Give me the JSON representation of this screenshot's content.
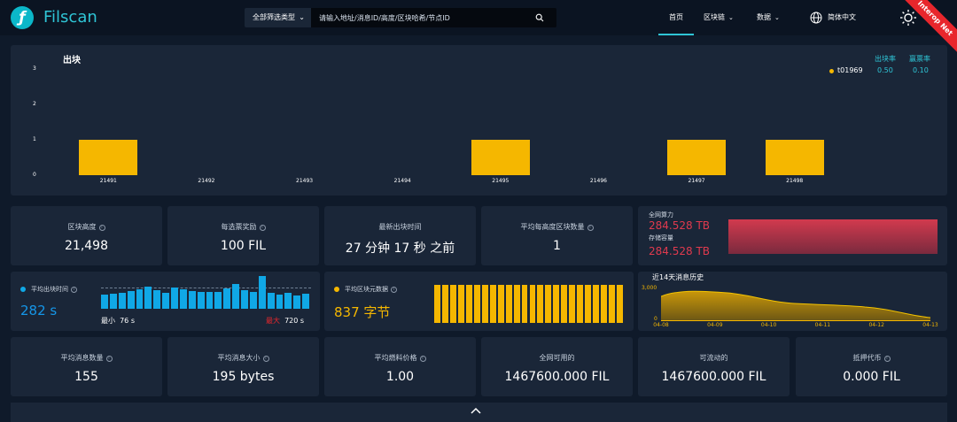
{
  "header": {
    "brand": "Filscan",
    "filter_label": "全部筛选类型",
    "search_placeholder": "请输入地址/消息ID/高度/区块哈希/节点ID",
    "nav": {
      "home": "首页",
      "chain": "区块链",
      "data": "数据"
    },
    "language": "简体中文",
    "ribbon": "Interop Net"
  },
  "blocks": {
    "title": "出块",
    "legend": {
      "col_rate": "出块率",
      "col_win": "赢票率",
      "miner": "t01969",
      "rate": "0.50",
      "win": "0.10"
    },
    "chart_data": {
      "type": "bar",
      "categories": [
        "21491",
        "21492",
        "21493",
        "21494",
        "21495",
        "21496",
        "21497",
        "21498"
      ],
      "values": [
        1,
        0,
        0,
        0,
        1,
        0,
        1,
        1
      ],
      "ylim": [
        0,
        3
      ],
      "yticks": [
        "0",
        "1",
        "2",
        "3"
      ],
      "color": "#f5b700"
    }
  },
  "stats": {
    "height": {
      "label": "区块高度",
      "value": "21,498"
    },
    "reward": {
      "label": "每选票奖励",
      "value": "100 FIL"
    },
    "latest": {
      "label": "最新出块时间",
      "value": "27 分钟 17 秒 之前"
    },
    "avg_blocks": {
      "label": "平均每高度区块数量",
      "value": "1"
    },
    "power": {
      "label_power": "全网算力",
      "value_power": "284.528 TB",
      "label_storage": "存储容量",
      "value_storage": "284.528 TB",
      "color": "#e03a4e"
    },
    "avg_time": {
      "label": "平均出块时间",
      "value": "282 s",
      "min_label": "最小",
      "min_value": "76 s",
      "max_label": "最大",
      "max_value": "720 s",
      "chart_data": {
        "type": "bar",
        "values": [
          190,
          200,
          215,
          240,
          265,
          300,
          250,
          210,
          280,
          260,
          240,
          225,
          225,
          230,
          275,
          330,
          250,
          230,
          440,
          220,
          185,
          220,
          175,
          200
        ],
        "color": "#10a8e6"
      }
    },
    "avg_size": {
      "label": "平均区块元数据",
      "value": "837 字节",
      "chart_data": {
        "type": "bar",
        "values": [
          837,
          837,
          837,
          837,
          837,
          837,
          837,
          837,
          837,
          837,
          837,
          837,
          837,
          837,
          837,
          837,
          837,
          837,
          837,
          837,
          837,
          837,
          837,
          837
        ],
        "color": "#f5b700"
      }
    },
    "history": {
      "title": "近14天消息历史",
      "chart_data": {
        "type": "area",
        "x": [
          "04-08",
          "04-09",
          "04-10",
          "04-11",
          "04-12",
          "04-13"
        ],
        "ytick_top": "3,000",
        "ytick_bottom": "0",
        "color": "#f5b700"
      }
    },
    "avg_msgs": {
      "label": "平均消息数量",
      "value": "155"
    },
    "avg_msg_size": {
      "label": "平均消息大小",
      "value": "195 bytes"
    },
    "avg_gas": {
      "label": "平均燃料价格",
      "value": "1.00"
    },
    "available": {
      "label": "全网可用的",
      "value": "1467600.000 FIL"
    },
    "circulating": {
      "label": "可流动的",
      "value": "1467600.000 FIL"
    },
    "pledge": {
      "label": "抵押代币",
      "value": "0.000 FIL"
    }
  }
}
